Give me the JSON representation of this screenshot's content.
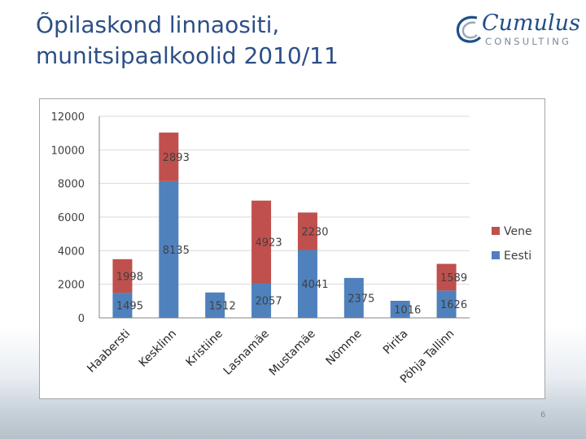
{
  "title": {
    "line1": "Õpilaskond linnaositi,",
    "line2": "munitsipaalkoolid 2010/11"
  },
  "logo": {
    "name": "Cumulus",
    "subtitle": "CONSULTING"
  },
  "page_number": "6",
  "colors": {
    "title": "#2c4f86",
    "eesti": "#4f81bd",
    "vene": "#c0504d",
    "gridline": "#d9d9d9"
  },
  "chart_data": {
    "type": "bar",
    "stacked": true,
    "categories": [
      "Haabersti",
      "Kesklinn",
      "Kristiine",
      "Lasnamäe",
      "Mustamäe",
      "Nõmme",
      "Pirita",
      "Põhja-Tallinn"
    ],
    "category_labels": [
      "Haabersti",
      "Kesklinn",
      "Kristiine",
      "Lasnamäe",
      "Mustamäe",
      "Nõmme",
      "Pirita",
      "Põhja Tallinn"
    ],
    "series": [
      {
        "name": "Eesti",
        "color": "#4f81bd",
        "values": [
          1495,
          8135,
          1512,
          2057,
          4041,
          2375,
          1016,
          1626
        ]
      },
      {
        "name": "Vene",
        "color": "#c0504d",
        "values": [
          1998,
          2893,
          0,
          4923,
          2230,
          0,
          0,
          1589
        ]
      }
    ],
    "yticks": [
      0,
      2000,
      4000,
      6000,
      8000,
      10000,
      12000
    ],
    "ylim": [
      0,
      12000
    ],
    "grid": true,
    "legend": {
      "position": "right",
      "entries": [
        "Vene",
        "Eesti"
      ]
    },
    "title": "",
    "xlabel": "",
    "ylabel": ""
  }
}
